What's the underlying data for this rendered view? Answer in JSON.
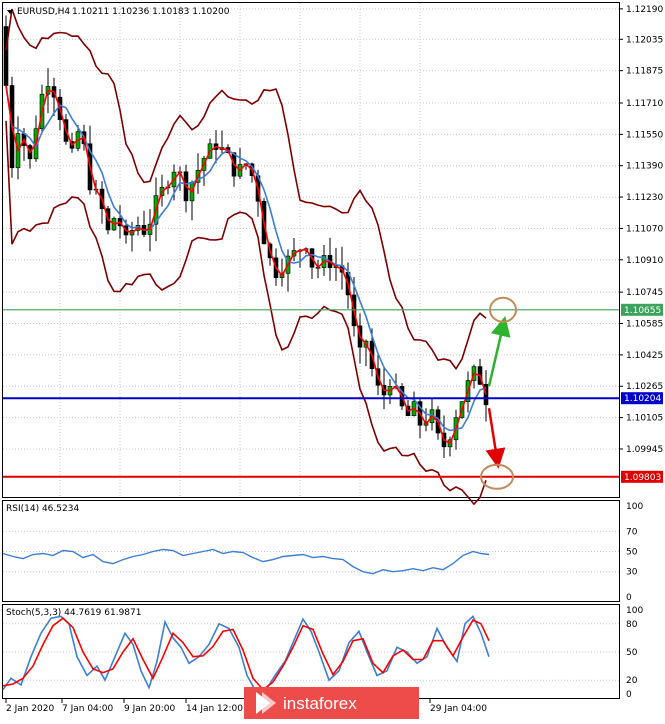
{
  "colors": {
    "up": "#00aa00",
    "down": "#000000",
    "bollinger": "#800000",
    "ma_fast": "#ff0000",
    "ma_slow": "#3b7fd9",
    "resistance": "#3ba35b",
    "current": "#0000cc",
    "support": "#e00000",
    "circle": "#c48a5c",
    "arrow_up": "#2db32d",
    "arrow_down": "#e00000",
    "stoch_main": "#3b7fd9",
    "stoch_signal": "#ff0000",
    "rsi_line": "#3b7fd9",
    "watermark_bg": "#ee4b4b"
  },
  "chart_data": [
    {
      "type": "candlestick",
      "title": "EURUSD,H4",
      "ohlc": "1.10211 1.10236 1.10183 1.10200",
      "ylim": [
        1.097,
        1.1222
      ],
      "yticks": [
        "1.12190",
        "1.12035",
        "1.11875",
        "1.11710",
        "1.11550",
        "1.11390",
        "1.11230",
        "1.11070",
        "1.10910",
        "1.10745",
        "1.10585",
        "1.10425",
        "1.10265",
        "1.10105",
        "1.09945"
      ],
      "xticks": [
        "2 Jan 2020",
        "7 Jan 04:00",
        "9 Jan 20:00",
        "14 Jan 12:00",
        "29 Jan 04:00"
      ],
      "levels": [
        {
          "name": "resistance",
          "value": 1.10655,
          "label": "1.10655"
        },
        {
          "name": "current",
          "value": 1.10204,
          "label": "1.10204"
        },
        {
          "name": "support",
          "value": 1.09803,
          "label": "1.09803"
        }
      ],
      "price_path": [
        [
          0,
          1.121
        ],
        [
          6,
          1.118
        ],
        [
          12,
          1.114
        ],
        [
          20,
          1.1165
        ],
        [
          28,
          1.1135
        ],
        [
          36,
          1.116
        ],
        [
          46,
          1.1185
        ],
        [
          56,
          1.1175
        ],
        [
          62,
          1.116
        ],
        [
          70,
          1.114
        ],
        [
          80,
          1.116
        ],
        [
          90,
          1.113
        ],
        [
          100,
          1.112
        ],
        [
          108,
          1.1105
        ],
        [
          116,
          1.1115
        ],
        [
          126,
          1.11
        ],
        [
          136,
          1.111
        ],
        [
          146,
          1.1105
        ],
        [
          156,
          1.112
        ],
        [
          166,
          1.113
        ],
        [
          176,
          1.114
        ],
        [
          186,
          1.1125
        ],
        [
          196,
          1.1135
        ],
        [
          206,
          1.1145
        ],
        [
          216,
          1.115
        ],
        [
          226,
          1.1145
        ],
        [
          236,
          1.1135
        ],
        [
          246,
          1.114
        ],
        [
          256,
          1.113
        ],
        [
          266,
          1.1095
        ],
        [
          276,
          1.1085
        ],
        [
          286,
          1.109
        ],
        [
          296,
          1.1095
        ],
        [
          306,
          1.11
        ],
        [
          314,
          1.1085
        ],
        [
          322,
          1.109
        ],
        [
          332,
          1.109
        ],
        [
          342,
          1.1085
        ],
        [
          350,
          1.107
        ],
        [
          358,
          1.104
        ],
        [
          366,
          1.105
        ],
        [
          374,
          1.103
        ],
        [
          382,
          1.102
        ],
        [
          390,
          1.103
        ],
        [
          398,
          1.102
        ],
        [
          406,
          1.101
        ],
        [
          414,
          1.1015
        ],
        [
          422,
          1.1005
        ],
        [
          430,
          1.1015
        ],
        [
          438,
          1.1
        ],
        [
          446,
          1.0995
        ],
        [
          454,
          1.101
        ],
        [
          462,
          1.102
        ],
        [
          470,
          1.103
        ],
        [
          476,
          1.1035
        ],
        [
          482,
          1.1027
        ],
        [
          486,
          1.102
        ]
      ]
    },
    {
      "type": "line",
      "title": "RSI(14) 46.5234",
      "ylim": [
        0,
        100
      ],
      "yticks": [
        "100",
        "70",
        "50",
        "30",
        "0"
      ],
      "path": [
        [
          0,
          48
        ],
        [
          10,
          45
        ],
        [
          20,
          43
        ],
        [
          30,
          47
        ],
        [
          40,
          48
        ],
        [
          50,
          46
        ],
        [
          60,
          51
        ],
        [
          70,
          50
        ],
        [
          80,
          44
        ],
        [
          90,
          47
        ],
        [
          100,
          40
        ],
        [
          110,
          38
        ],
        [
          120,
          42
        ],
        [
          130,
          45
        ],
        [
          140,
          47
        ],
        [
          150,
          50
        ],
        [
          160,
          52
        ],
        [
          170,
          51
        ],
        [
          180,
          46
        ],
        [
          190,
          48
        ],
        [
          200,
          50
        ],
        [
          210,
          52
        ],
        [
          220,
          48
        ],
        [
          230,
          50
        ],
        [
          240,
          49
        ],
        [
          250,
          44
        ],
        [
          260,
          40
        ],
        [
          270,
          42
        ],
        [
          280,
          45
        ],
        [
          290,
          46
        ],
        [
          300,
          47
        ],
        [
          310,
          44
        ],
        [
          320,
          45
        ],
        [
          330,
          43
        ],
        [
          340,
          42
        ],
        [
          350,
          35
        ],
        [
          360,
          30
        ],
        [
          370,
          28
        ],
        [
          380,
          32
        ],
        [
          390,
          30
        ],
        [
          400,
          31
        ],
        [
          410,
          33
        ],
        [
          420,
          31
        ],
        [
          430,
          34
        ],
        [
          440,
          32
        ],
        [
          450,
          38
        ],
        [
          460,
          46
        ],
        [
          470,
          50
        ],
        [
          478,
          48
        ],
        [
          486,
          47
        ]
      ]
    },
    {
      "type": "line",
      "title": "Stoch(5,3,3) 44.7619 61.9871",
      "ylim": [
        0,
        100
      ],
      "yticks": [
        "100",
        "80",
        "50",
        "20",
        "0"
      ],
      "main": [
        [
          0,
          10
        ],
        [
          8,
          22
        ],
        [
          18,
          15
        ],
        [
          28,
          45
        ],
        [
          38,
          70
        ],
        [
          48,
          86
        ],
        [
          58,
          88
        ],
        [
          66,
          80
        ],
        [
          74,
          45
        ],
        [
          84,
          25
        ],
        [
          94,
          35
        ],
        [
          102,
          20
        ],
        [
          112,
          45
        ],
        [
          122,
          70
        ],
        [
          130,
          58
        ],
        [
          138,
          30
        ],
        [
          146,
          12
        ],
        [
          154,
          40
        ],
        [
          162,
          82
        ],
        [
          170,
          65
        ],
        [
          178,
          55
        ],
        [
          186,
          38
        ],
        [
          196,
          45
        ],
        [
          206,
          58
        ],
        [
          216,
          80
        ],
        [
          226,
          75
        ],
        [
          236,
          55
        ],
        [
          244,
          25
        ],
        [
          252,
          10
        ],
        [
          262,
          8
        ],
        [
          272,
          25
        ],
        [
          282,
          40
        ],
        [
          292,
          65
        ],
        [
          300,
          85
        ],
        [
          308,
          72
        ],
        [
          316,
          50
        ],
        [
          326,
          20
        ],
        [
          336,
          30
        ],
        [
          346,
          60
        ],
        [
          356,
          72
        ],
        [
          364,
          50
        ],
        [
          374,
          25
        ],
        [
          384,
          30
        ],
        [
          394,
          55
        ],
        [
          404,
          50
        ],
        [
          414,
          38
        ],
        [
          424,
          45
        ],
        [
          434,
          75
        ],
        [
          444,
          55
        ],
        [
          454,
          40
        ],
        [
          462,
          80
        ],
        [
          470,
          88
        ],
        [
          478,
          70
        ],
        [
          486,
          45
        ]
      ],
      "signal": [
        [
          0,
          14
        ],
        [
          10,
          16
        ],
        [
          20,
          22
        ],
        [
          30,
          35
        ],
        [
          40,
          58
        ],
        [
          50,
          78
        ],
        [
          60,
          86
        ],
        [
          70,
          76
        ],
        [
          80,
          50
        ],
        [
          90,
          32
        ],
        [
          100,
          28
        ],
        [
          110,
          32
        ],
        [
          120,
          50
        ],
        [
          130,
          64
        ],
        [
          140,
          42
        ],
        [
          150,
          22
        ],
        [
          160,
          45
        ],
        [
          170,
          70
        ],
        [
          180,
          60
        ],
        [
          190,
          45
        ],
        [
          200,
          46
        ],
        [
          210,
          56
        ],
        [
          220,
          72
        ],
        [
          230,
          74
        ],
        [
          240,
          52
        ],
        [
          250,
          22
        ],
        [
          260,
          10
        ],
        [
          270,
          18
        ],
        [
          280,
          35
        ],
        [
          290,
          55
        ],
        [
          300,
          78
        ],
        [
          310,
          74
        ],
        [
          320,
          48
        ],
        [
          330,
          26
        ],
        [
          340,
          40
        ],
        [
          350,
          62
        ],
        [
          360,
          64
        ],
        [
          370,
          38
        ],
        [
          380,
          28
        ],
        [
          390,
          46
        ],
        [
          400,
          52
        ],
        [
          410,
          42
        ],
        [
          420,
          42
        ],
        [
          430,
          62
        ],
        [
          440,
          62
        ],
        [
          450,
          46
        ],
        [
          460,
          66
        ],
        [
          470,
          84
        ],
        [
          478,
          80
        ],
        [
          486,
          62
        ]
      ]
    }
  ],
  "watermark": {
    "text": "instaforex"
  }
}
